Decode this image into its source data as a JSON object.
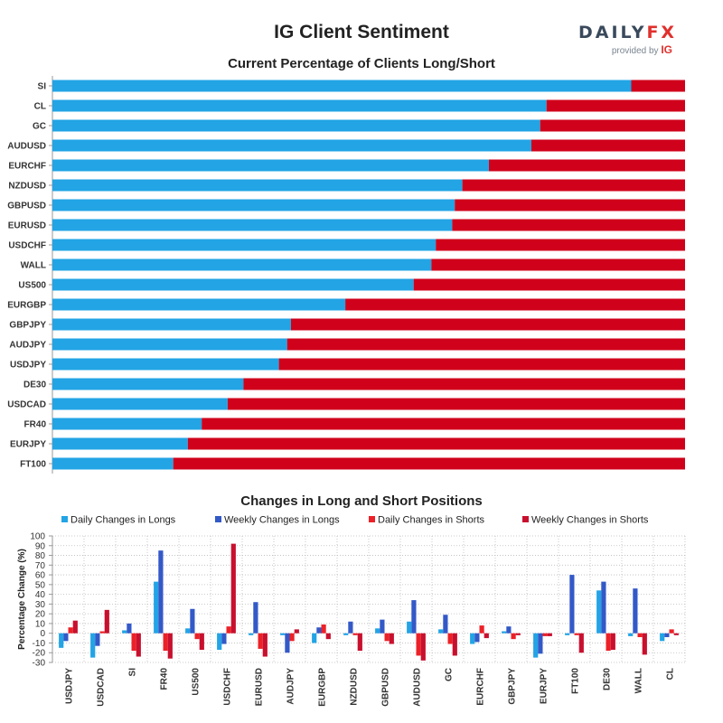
{
  "title": "IG Client Sentiment",
  "logo": {
    "main_a": "DAILY",
    "main_b": "FX",
    "provided_by": "provided by",
    "ig": "IG"
  },
  "colors": {
    "long": "#22a4e5",
    "short": "#d0021b",
    "daily_long": "#22a4e5",
    "weekly_long": "#3359c8",
    "daily_short": "#ec2127",
    "weekly_short": "#c8102e"
  },
  "chart_data": [
    {
      "type": "bar",
      "orientation": "horizontal",
      "stacked": true,
      "title": "Current Percentage of Clients Long/Short",
      "categories": [
        "SI",
        "CL",
        "GC",
        "AUDUSD",
        "EURCHF",
        "NZDUSD",
        "GBPUSD",
        "EURUSD",
        "USDCHF",
        "WALL",
        "US500",
        "EURGBP",
        "GBPJPY",
        "AUDJPY",
        "USDJPY",
        "DE30",
        "USDCAD",
        "FR40",
        "EURJPY",
        "FT100"
      ],
      "series": [
        {
          "values": [
            91.5,
            78.1,
            77.1,
            75.7,
            69.0,
            64.8,
            63.6,
            63.2,
            60.6,
            59.9,
            57.1,
            46.3,
            37.7,
            37.1,
            35.8,
            30.2,
            27.7,
            23.6,
            21.4,
            19.1
          ]
        },
        {
          "values": [
            8.5,
            21.9,
            22.9,
            24.3,
            31.0,
            35.2,
            36.4,
            36.8,
            39.4,
            40.1,
            42.9,
            53.7,
            62.3,
            62.9,
            64.2,
            69.8,
            72.3,
            76.4,
            78.6,
            80.9
          ]
        }
      ],
      "xlim": [
        0,
        100
      ]
    },
    {
      "type": "bar",
      "title": "Changes in Long and Short Positions",
      "ylabel": "Percentage Change (%)",
      "ylim": [
        -30,
        100
      ],
      "yticks": [
        -30,
        -20,
        -10,
        0,
        10,
        20,
        30,
        40,
        50,
        60,
        70,
        80,
        90,
        100
      ],
      "legend_position": "top",
      "categories": [
        "USDJPY",
        "USDCAD",
        "SI",
        "FR40",
        "US500",
        "USDCHF",
        "EURUSD",
        "AUDJPY",
        "EURGBP",
        "NZDUSD",
        "GBPUSD",
        "AUDUSD",
        "GC",
        "EURCHF",
        "GBPJPY",
        "EURJPY",
        "FT100",
        "DE30",
        "WALL",
        "CL"
      ],
      "series": [
        {
          "name": "Daily Changes in Longs",
          "values": [
            -15,
            -25,
            3,
            53,
            5,
            -17,
            -2,
            -2,
            -10,
            -2,
            5,
            12,
            4,
            -11,
            2,
            -25,
            -2,
            44,
            -3,
            -8
          ]
        },
        {
          "name": "Weekly Changes in Longs",
          "values": [
            -8,
            -13,
            10,
            85,
            25,
            -11,
            32,
            -20,
            6,
            12,
            14,
            34,
            19,
            -9,
            7,
            -21,
            60,
            53,
            46,
            -4
          ]
        },
        {
          "name": "Daily Changes in Shorts",
          "values": [
            6,
            2,
            -18,
            -18,
            -6,
            7,
            -16,
            -8,
            9,
            -2,
            -8,
            -23,
            -11,
            8,
            -6,
            -3,
            -2,
            -18,
            -4,
            4
          ]
        },
        {
          "name": "Weekly Changes in Shorts",
          "values": [
            13,
            24,
            -24,
            -26,
            -17,
            92,
            -24,
            4,
            -6,
            -18,
            -11,
            -28,
            -23,
            -5,
            -2,
            -3,
            -20,
            -17,
            -22,
            -2
          ]
        }
      ]
    }
  ]
}
